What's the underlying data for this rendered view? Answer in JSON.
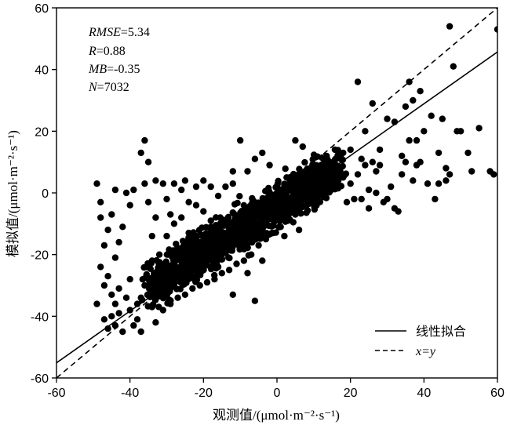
{
  "chart_data": {
    "type": "scatter",
    "xlabel": "观测值/(μmol·m⁻²·s⁻¹)",
    "ylabel": "模拟值/(μmol·m⁻²·s⁻¹)",
    "xlim": [
      -60,
      60
    ],
    "ylim": [
      -60,
      60
    ],
    "xticks": [
      "-60",
      "-40",
      "-20",
      "0",
      "20",
      "40",
      "60"
    ],
    "yticks": [
      "-60",
      "-40",
      "-20",
      "0",
      "20",
      "40",
      "60"
    ],
    "stats": [
      {
        "key": "RMSE",
        "value": "=5.34"
      },
      {
        "key": "R",
        "value": "=0.88"
      },
      {
        "key": "MB",
        "value": "=-0.35"
      },
      {
        "key": "N",
        "value": "=7032"
      }
    ],
    "legend": {
      "position": "bottom-right",
      "entries": [
        {
          "label": "线性拟合",
          "style": "solid"
        },
        {
          "label": "x=y",
          "style": "dashed"
        }
      ]
    },
    "fit_line": {
      "slope": 0.84,
      "intercept": -4.7
    },
    "identity_line": {
      "slope": 1,
      "intercept": 0
    },
    "dense_cloud_note": "most of the 7032 points fall in a dense band from about (-35,-30) to (15,8)",
    "points": [
      [
        -49,
        3
      ],
      [
        -48,
        -3
      ],
      [
        -48,
        -8
      ],
      [
        -49,
        -36
      ],
      [
        -47,
        -41
      ],
      [
        -46,
        -44
      ],
      [
        -45,
        -40
      ],
      [
        -44,
        -43
      ],
      [
        -44,
        -36
      ],
      [
        -43,
        -39
      ],
      [
        -47,
        -30
      ],
      [
        -45,
        -33
      ],
      [
        -43,
        -31
      ],
      [
        -41,
        -34
      ],
      [
        -40,
        -38
      ],
      [
        -40,
        -28
      ],
      [
        -39,
        -43
      ],
      [
        -38,
        -36
      ],
      [
        -38,
        -41
      ],
      [
        -37,
        -45
      ],
      [
        -42,
        -45
      ],
      [
        -46,
        -27
      ],
      [
        -44,
        -21
      ],
      [
        -43,
        -16
      ],
      [
        -42,
        -11
      ],
      [
        -40,
        -4
      ],
      [
        -41,
        0
      ],
      [
        -39,
        1
      ],
      [
        -44,
        1
      ],
      [
        -46,
        -12
      ],
      [
        -45,
        -7
      ],
      [
        -47,
        -17
      ],
      [
        -48,
        -24
      ],
      [
        -36,
        17
      ],
      [
        -37,
        13
      ],
      [
        -35,
        10
      ],
      [
        -36,
        3
      ],
      [
        -35,
        -3
      ],
      [
        -33,
        -8
      ],
      [
        -34,
        -14
      ],
      [
        -33,
        4
      ],
      [
        -31,
        3
      ],
      [
        -30,
        -2
      ],
      [
        -28,
        3
      ],
      [
        -26,
        1
      ],
      [
        -25,
        4
      ],
      [
        -24,
        -3
      ],
      [
        -22,
        2
      ],
      [
        -20,
        4
      ],
      [
        -18,
        2
      ],
      [
        -16,
        -1
      ],
      [
        -14,
        2
      ],
      [
        -12,
        3
      ],
      [
        -28,
        -10
      ],
      [
        -30,
        -14
      ],
      [
        -26,
        -8
      ],
      [
        -24,
        -13
      ],
      [
        -32,
        -20
      ],
      [
        -20,
        -6
      ],
      [
        -18,
        -9
      ],
      [
        -10,
        17
      ],
      [
        -8,
        7
      ],
      [
        -6,
        11
      ],
      [
        -4,
        13
      ],
      [
        -2,
        9
      ],
      [
        5,
        17
      ],
      [
        7,
        15
      ],
      [
        -12,
        7
      ],
      [
        -22,
        -4
      ],
      [
        -29,
        -7
      ],
      [
        -33,
        -42
      ],
      [
        -31,
        -38
      ],
      [
        -29,
        -36
      ],
      [
        -27,
        -34
      ],
      [
        -25,
        -33
      ],
      [
        -23,
        -31
      ],
      [
        -21,
        -30
      ],
      [
        -19,
        -29
      ],
      [
        -17,
        -28
      ],
      [
        -15,
        -26
      ],
      [
        -13,
        -25
      ],
      [
        -11,
        -23
      ],
      [
        -9,
        -22
      ],
      [
        -7,
        -20
      ],
      [
        -5,
        -17
      ],
      [
        -3,
        -15
      ],
      [
        -1,
        -13
      ],
      [
        1,
        -11
      ],
      [
        3,
        -9
      ],
      [
        5,
        -7
      ],
      [
        -34,
        -22
      ],
      [
        -32,
        -24
      ],
      [
        -30,
        -26
      ],
      [
        -28,
        -20
      ],
      [
        -26,
        -22
      ],
      [
        -24,
        -18
      ],
      [
        -22,
        -16
      ],
      [
        -20,
        -20
      ],
      [
        -18,
        -14
      ],
      [
        -16,
        -12
      ],
      [
        -14,
        -16
      ],
      [
        -12,
        -10
      ],
      [
        -10,
        -12
      ],
      [
        -8,
        -6
      ],
      [
        -6,
        -8
      ],
      [
        -4,
        -3
      ],
      [
        -2,
        -5
      ],
      [
        0,
        0
      ],
      [
        2,
        2
      ],
      [
        4,
        4
      ],
      [
        6,
        6
      ],
      [
        8,
        5
      ],
      [
        10,
        8
      ],
      [
        12,
        9
      ],
      [
        14,
        7
      ],
      [
        16,
        9
      ],
      [
        -36,
        -30
      ],
      [
        -35,
        -28
      ],
      [
        -37,
        -34
      ],
      [
        -34,
        -37
      ],
      [
        18,
        5
      ],
      [
        20,
        3
      ],
      [
        22,
        6
      ],
      [
        24,
        9
      ],
      [
        21,
        -2
      ],
      [
        25,
        1
      ],
      [
        27,
        0
      ],
      [
        19,
        -3
      ],
      [
        23,
        11
      ],
      [
        26,
        10
      ],
      [
        28,
        9
      ],
      [
        29,
        -3
      ],
      [
        31,
        2
      ],
      [
        32,
        -5
      ],
      [
        34,
        6
      ],
      [
        33,
        -6
      ],
      [
        35,
        10
      ],
      [
        36,
        17
      ],
      [
        38,
        17
      ],
      [
        40,
        20
      ],
      [
        42,
        25
      ],
      [
        44,
        13
      ],
      [
        45,
        24
      ],
      [
        47,
        54
      ],
      [
        48,
        41
      ],
      [
        49,
        20
      ],
      [
        50,
        20
      ],
      [
        52,
        13
      ],
      [
        53,
        7
      ],
      [
        55,
        21
      ],
      [
        58,
        7
      ],
      [
        60,
        53
      ],
      [
        59,
        6
      ],
      [
        46,
        4
      ],
      [
        47,
        6
      ],
      [
        43,
        -2
      ],
      [
        41,
        3
      ],
      [
        39,
        10
      ],
      [
        37,
        4
      ],
      [
        30,
        -2
      ],
      [
        22,
        36
      ],
      [
        24,
        20
      ],
      [
        26,
        29
      ],
      [
        28,
        14
      ],
      [
        30,
        24
      ],
      [
        32,
        23
      ],
      [
        34,
        12
      ],
      [
        35,
        28
      ],
      [
        36,
        36
      ],
      [
        37,
        30
      ],
      [
        39,
        33
      ],
      [
        20,
        14
      ],
      [
        18,
        13
      ],
      [
        16,
        11
      ],
      [
        27,
        7
      ],
      [
        23,
        -2
      ],
      [
        25,
        -5
      ],
      [
        38,
        9
      ],
      [
        44,
        3
      ],
      [
        46,
        8
      ],
      [
        -12,
        -33
      ],
      [
        -6,
        -35
      ],
      [
        -16,
        -24
      ],
      [
        -20,
        -24
      ],
      [
        -8,
        -26
      ],
      [
        -4,
        -22
      ],
      [
        2,
        -14
      ],
      [
        6,
        -12
      ],
      [
        8,
        -4
      ],
      [
        10,
        -1
      ],
      [
        -30,
        -32
      ],
      [
        -28,
        -30
      ],
      [
        -26,
        -28
      ],
      [
        -24,
        -26
      ],
      [
        -22,
        -24
      ],
      [
        -20,
        -22
      ],
      [
        -18,
        -20
      ],
      [
        -16,
        -18
      ],
      [
        -14,
        -14
      ],
      [
        -12,
        -12
      ]
    ]
  }
}
